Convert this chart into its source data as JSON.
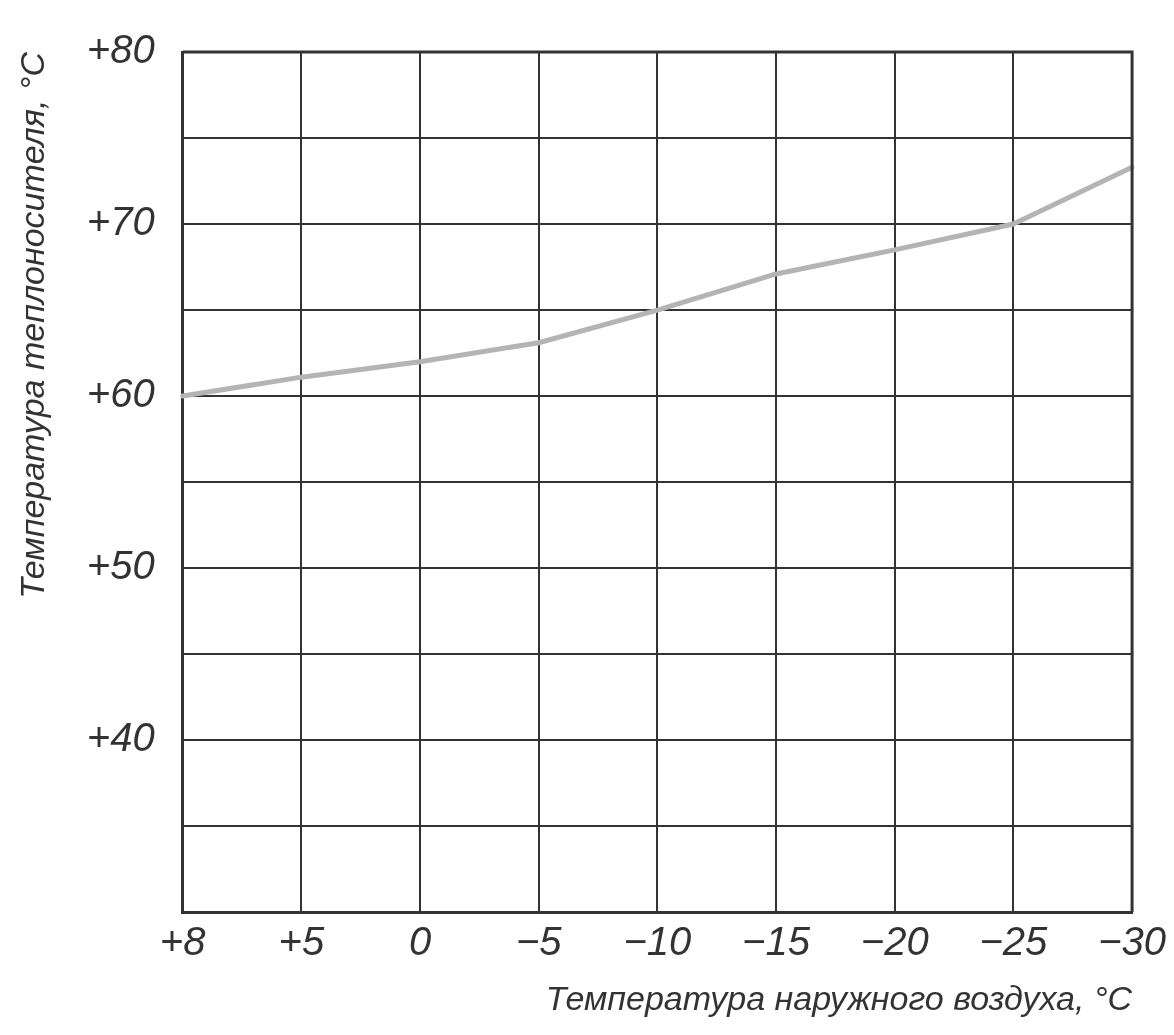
{
  "chart_data": {
    "type": "line",
    "xlabel": "Температура наружного воздуха, °C",
    "ylabel": "Температура теплоносителя, °C",
    "categories": [
      "+8",
      "+5",
      "0",
      "−5",
      "−10",
      "−15",
      "−20",
      "−25",
      "−30"
    ],
    "series": [
      {
        "color": "#b4b4b4",
        "values": [
          60,
          61.1,
          62,
          63.1,
          65,
          67.1,
          68.5,
          70,
          73.3
        ]
      }
    ],
    "ylim": [
      30,
      80
    ],
    "yticks": [
      {
        "value": 35,
        "label": null
      },
      {
        "value": 40,
        "label": "+40"
      },
      {
        "value": 45,
        "label": null
      },
      {
        "value": 50,
        "label": "+50"
      },
      {
        "value": 55,
        "label": null
      },
      {
        "value": 60,
        "label": "+60"
      },
      {
        "value": 65,
        "label": null
      },
      {
        "value": 70,
        "label": "+70"
      },
      {
        "value": 75,
        "label": null
      },
      {
        "value": 80,
        "label": "+80"
      }
    ],
    "grid": true,
    "legend": false,
    "marker": "none",
    "line_style": "solid"
  }
}
